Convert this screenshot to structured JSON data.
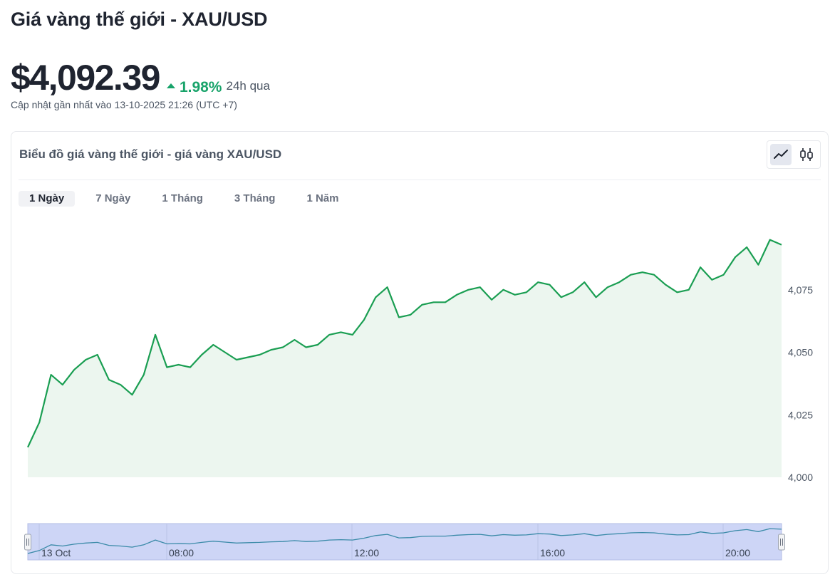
{
  "page": {
    "title": "Giá vàng thế giới - XAU/USD",
    "price": "$4,092.39",
    "change": "1.98%",
    "change_period": "24h qua",
    "updated": "Cập nhật gần nhất vào 13-10-2025 21:26 (UTC +7)"
  },
  "card": {
    "title": "Biểu đồ giá vàng thế giới - giá vàng XAU/USD",
    "chart_types": [
      {
        "name": "line-chart-icon",
        "active": true
      },
      {
        "name": "candlestick-icon",
        "active": false
      }
    ],
    "tabs": [
      {
        "label": "1 Ngày",
        "active": true
      },
      {
        "label": "7 Ngày",
        "active": false
      },
      {
        "label": "1 Tháng",
        "active": false
      },
      {
        "label": "3 Tháng",
        "active": false
      },
      {
        "label": "1 Năm",
        "active": false
      }
    ]
  },
  "colors": {
    "up": "#18a36a",
    "line": "#1a9e52",
    "area": "#ecf6ef",
    "navigator_fill": "#cdd5f6",
    "navigator_line": "#3a8aa8"
  },
  "chart_data": {
    "type": "area",
    "title": "",
    "xlabel": "",
    "ylabel": "",
    "ylim": [
      4000,
      4100
    ],
    "yticks": [
      "4,000",
      "4,025",
      "4,050",
      "4,075"
    ],
    "navigator_labels": [
      "13 Oct",
      "08:00",
      "12:00",
      "16:00",
      "20:00"
    ],
    "series": [
      {
        "values": [
          4012,
          4022,
          4041,
          4037,
          4043,
          4047,
          4049,
          4039,
          4037,
          4033,
          4041,
          4057,
          4044,
          4045,
          4044,
          4049,
          4053,
          4050,
          4047,
          4048,
          4049,
          4051,
          4052,
          4055,
          4052,
          4053,
          4057,
          4058,
          4057,
          4063,
          4072,
          4076,
          4064,
          4065,
          4069,
          4070,
          4070,
          4073,
          4075,
          4076,
          4071,
          4075,
          4073,
          4074,
          4078,
          4077,
          4072,
          4074,
          4078,
          4072,
          4076,
          4078,
          4081,
          4082,
          4081,
          4077,
          4074,
          4075,
          4084,
          4079,
          4081,
          4088,
          4092,
          4085,
          4095,
          4093
        ]
      }
    ]
  }
}
